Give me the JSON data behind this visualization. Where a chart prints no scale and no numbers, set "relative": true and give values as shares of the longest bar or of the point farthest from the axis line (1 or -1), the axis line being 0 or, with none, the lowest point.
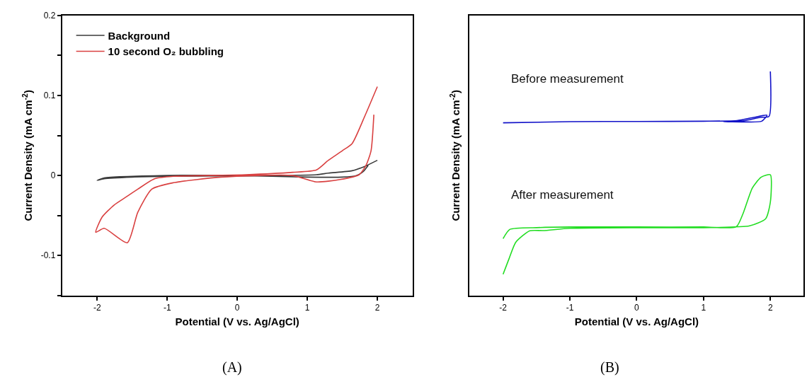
{
  "chart_data": [
    {
      "type": "line",
      "xlabel": "Potential (V vs. Ag/AgCl)",
      "ylabel": "Current Density (mA cm$^{-2}$)",
      "xlim": [
        -2.5,
        2.5
      ],
      "xticks": [
        -2,
        -1,
        0,
        1,
        2
      ],
      "ylim": [
        -0.15,
        0.2
      ],
      "yticks": [
        {
          "value": -0.15,
          "label": null
        },
        -0.1,
        {
          "value": -0.05,
          "label": null
        },
        0,
        {
          "value": 0.05,
          "label": null
        },
        0.1,
        {
          "value": 0.15,
          "label": null
        },
        0.2
      ],
      "legend": "top left",
      "marker": "none",
      "line_style": "solid",
      "annotations": [
        "(A)"
      ],
      "series": [
        {
          "name": "Background",
          "color": "#3a3a3a",
          "x": [
            2.0,
            1.81,
            1.64,
            1.3,
            1.13,
            0.5,
            -1.0,
            -1.5,
            -1.9,
            -2.0,
            -1.9,
            -1.0,
            0.0,
            1.0,
            1.5,
            1.7,
            1.8,
            1.88
          ],
          "values": [
            0.019,
            0.011,
            0.006,
            0.003,
            0.001,
            0.0,
            -0.001,
            -0.002,
            -0.004,
            -0.006,
            -0.003,
            0.0,
            0.0,
            -0.002,
            -0.002,
            0.0,
            0.005,
            0.014
          ]
        },
        {
          "name": "10 second O₂ bubbling",
          "color": "#d94040",
          "x": [
            2.0,
            1.81,
            1.64,
            1.5,
            1.3,
            1.13,
            0.79,
            0.12,
            -0.91,
            -1.18,
            -1.42,
            -1.59,
            -1.76,
            -1.93,
            -2.02,
            -1.9,
            -1.57,
            -1.42,
            -1.22,
            -0.91,
            -0.23,
            0.79,
            1.13,
            1.47,
            1.74,
            1.84,
            1.91,
            1.95
          ],
          "values": [
            0.111,
            0.072,
            0.04,
            0.031,
            0.019,
            0.007,
            0.004,
            0.001,
            -0.001,
            -0.004,
            -0.017,
            -0.027,
            -0.037,
            -0.052,
            -0.071,
            -0.066,
            -0.084,
            -0.046,
            -0.017,
            -0.009,
            -0.002,
            0.0,
            -0.008,
            -0.005,
            0.001,
            0.013,
            0.031,
            0.076
          ]
        }
      ]
    },
    {
      "type": "line",
      "relative": true,
      "xlabel": "Potential (V vs. Ag/AgCl)",
      "ylabel": "Current Density (mA cm$^{-2}$)",
      "xlim": [
        -2.5,
        2.5
      ],
      "xticks": [
        -2,
        -1,
        0,
        1,
        2
      ],
      "tick_labels": "x",
      "legend": false,
      "marker": "none",
      "line_style": "solid",
      "annotations": [
        "(B)"
      ],
      "series": [
        {
          "name": "Before measurement",
          "color": "#1010c8",
          "x": [
            -2.0,
            -1.0,
            0.0,
            1.0,
            1.5,
            1.75,
            1.95,
            1.87,
            1.6,
            1.3,
            1.6,
            1.85,
            1.98,
            2.0
          ],
          "values": [
            0.771,
            0.776,
            0.777,
            0.778,
            0.781,
            0.795,
            0.805,
            0.778,
            0.775,
            0.776,
            0.78,
            0.795,
            0.8,
            1.0
          ]
        },
        {
          "name": "After measurement",
          "color": "#22dd22",
          "x": [
            -2.0,
            -1.9,
            -1.5,
            -1.0,
            0.0,
            1.0,
            1.49,
            1.59,
            1.73,
            1.86,
            2.0,
            2.0,
            1.93,
            1.69,
            1.0,
            0.0,
            -1.0,
            -1.4,
            -1.6,
            -1.81,
            -1.91,
            -2.0
          ],
          "values": [
            0.254,
            0.295,
            0.303,
            0.306,
            0.306,
            0.306,
            0.307,
            0.365,
            0.48,
            0.528,
            0.539,
            0.417,
            0.343,
            0.311,
            0.303,
            0.303,
            0.3,
            0.29,
            0.289,
            0.238,
            0.165,
            0.095
          ]
        }
      ]
    }
  ]
}
